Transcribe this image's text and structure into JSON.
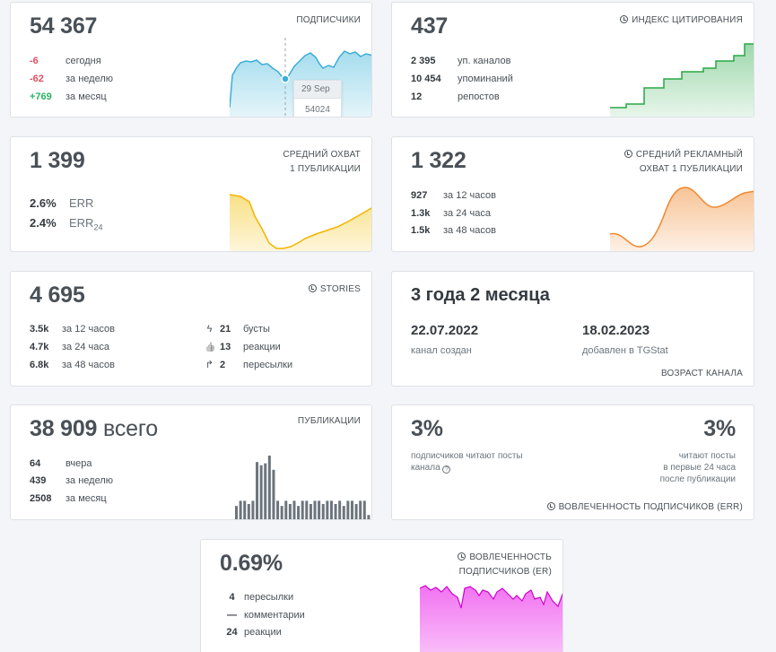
{
  "subscribers": {
    "value": "54 367",
    "label": "ПОДПИСЧИКИ",
    "rows": [
      {
        "value": "-6",
        "text": "сегодня"
      },
      {
        "value": "-62",
        "text": "за неделю"
      },
      {
        "value": "+769",
        "text": "за месяц"
      }
    ],
    "tooltip": {
      "date": "29 Sep",
      "value": "54024"
    },
    "color": "#5bc0de"
  },
  "citation": {
    "value": "437",
    "label": "ИНДЕКС ЦИТИРОВАНИЯ",
    "rows": [
      {
        "value": "2 395",
        "text": "уп. каналов"
      },
      {
        "value": "10 454",
        "text": "упоминаний"
      },
      {
        "value": "12",
        "text": "репостов"
      }
    ],
    "color": "#28a745"
  },
  "reach": {
    "value": "1 399",
    "label_line1": "СРЕДНИЙ ОХВАТ",
    "label_line2": "1 ПУБЛИКАЦИИ",
    "err1": {
      "value": "2.6%",
      "text": "ERR"
    },
    "err2": {
      "value": "2.4%",
      "text": "ERR",
      "sub": "24"
    },
    "color": "#f4c20d"
  },
  "ad_reach": {
    "value": "1 322",
    "label_line1": "СРЕДНИЙ РЕКЛАМНЫЙ",
    "label_line2": "ОХВАТ 1 ПУБЛИКАЦИИ",
    "rows": [
      {
        "value": "927",
        "text": "за 12 часов"
      },
      {
        "value": "1.3k",
        "text": "за 24 часа"
      },
      {
        "value": "1.5k",
        "text": "за 48 часов"
      }
    ],
    "color": "#f0882d"
  },
  "stories": {
    "value": "4 695",
    "label": "STORIES",
    "rows": [
      {
        "value": "3.5k",
        "text": "за 12 часов"
      },
      {
        "value": "4.7k",
        "text": "за 24 часа"
      },
      {
        "value": "6.8k",
        "text": "за 48 часов"
      }
    ],
    "rows_right": [
      {
        "icon": "bolt-icon",
        "glyph": "ϟ",
        "value": "21",
        "text": "бусты"
      },
      {
        "icon": "thumbs-up-icon",
        "glyph": "👍",
        "value": "13",
        "text": "реакции"
      },
      {
        "icon": "share-arrow-icon",
        "glyph": "↱",
        "value": "2",
        "text": "пересылки"
      }
    ]
  },
  "age": {
    "value": "3 года 2 месяца",
    "created_date": "22.07.2022",
    "created_text": "канал создан",
    "added_date": "18.02.2023",
    "added_text": "добавлен в TGStat",
    "label": "ВОЗРАСТ КАНАЛА"
  },
  "posts": {
    "value": "38 909",
    "suffix": "всего",
    "label": "ПУБЛИКАЦИИ",
    "rows": [
      {
        "value": "64",
        "text": "вчера"
      },
      {
        "value": "439",
        "text": "за неделю"
      },
      {
        "value": "2508",
        "text": "за месяц"
      }
    ],
    "bars": [
      0.22,
      0.3,
      0.3,
      0.25,
      0.3,
      0.9,
      0.85,
      0.88,
      1.0,
      0.78,
      0.3,
      0.22,
      0.3,
      0.25,
      0.3,
      0.22,
      0.3,
      0.3,
      0.25,
      0.3,
      0.3,
      0.25,
      0.3,
      0.3,
      0.25,
      0.3,
      0.22,
      0.3,
      0.3,
      0.25,
      0.3,
      0.3,
      0.08
    ],
    "color": "#6c757d"
  },
  "err": {
    "left_value": "3%",
    "left_line1": "подписчиков читают посты",
    "left_line2": "канала",
    "right_value": "3%",
    "right_line1": "читают посты",
    "right_line2": "в первые 24 часа",
    "right_line3": "после публикации",
    "label": "ВОВЛЕЧЕННОСТЬ ПОДПИСЧИКОВ (ERR)"
  },
  "er": {
    "value": "0.69%",
    "label_line1": "ВОВЛЕЧЕННОСТЬ",
    "label_line2": "ПОДПИСЧИКОВ (ER)",
    "rows": [
      {
        "value": "4",
        "text": "пересылки"
      },
      {
        "value": "—",
        "text": "комментарии"
      },
      {
        "value": "24",
        "text": "реакции"
      }
    ],
    "color": "#e600e6"
  }
}
